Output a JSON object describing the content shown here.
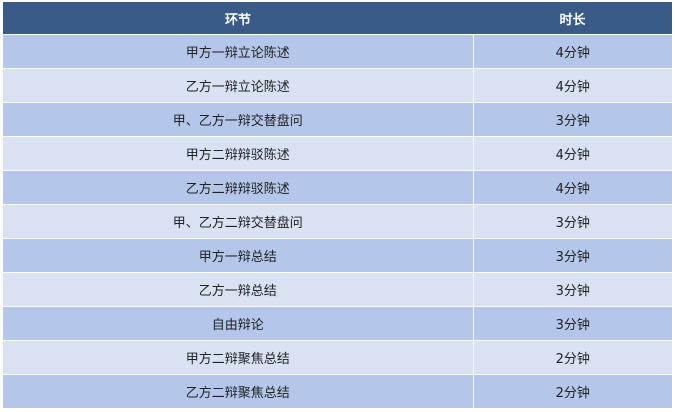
{
  "table": {
    "headers": [
      "环节",
      "时长"
    ],
    "rows": [
      [
        "甲方一辩立论陈述",
        "4分钟"
      ],
      [
        "乙方一辩立论陈述",
        "4分钟"
      ],
      [
        "甲、乙方一辩交替盘问",
        "3分钟"
      ],
      [
        "甲方二辩辩驳陈述",
        "4分钟"
      ],
      [
        "乙方二辩辩驳陈述",
        "4分钟"
      ],
      [
        "甲、乙方二辩交替盘问",
        "3分钟"
      ],
      [
        "甲方一辩总结",
        "3分钟"
      ],
      [
        "乙方一辩总结",
        "3分钟"
      ],
      [
        "自由辩论",
        "3分钟"
      ],
      [
        "甲方二辩聚焦总结",
        "2分钟"
      ],
      [
        "乙方二辩聚焦总结",
        "2分钟"
      ]
    ]
  },
  "colors": {
    "header": "#3a5a87",
    "row_odd": "#b4c6e9",
    "row_even": "#d9e2f3"
  }
}
